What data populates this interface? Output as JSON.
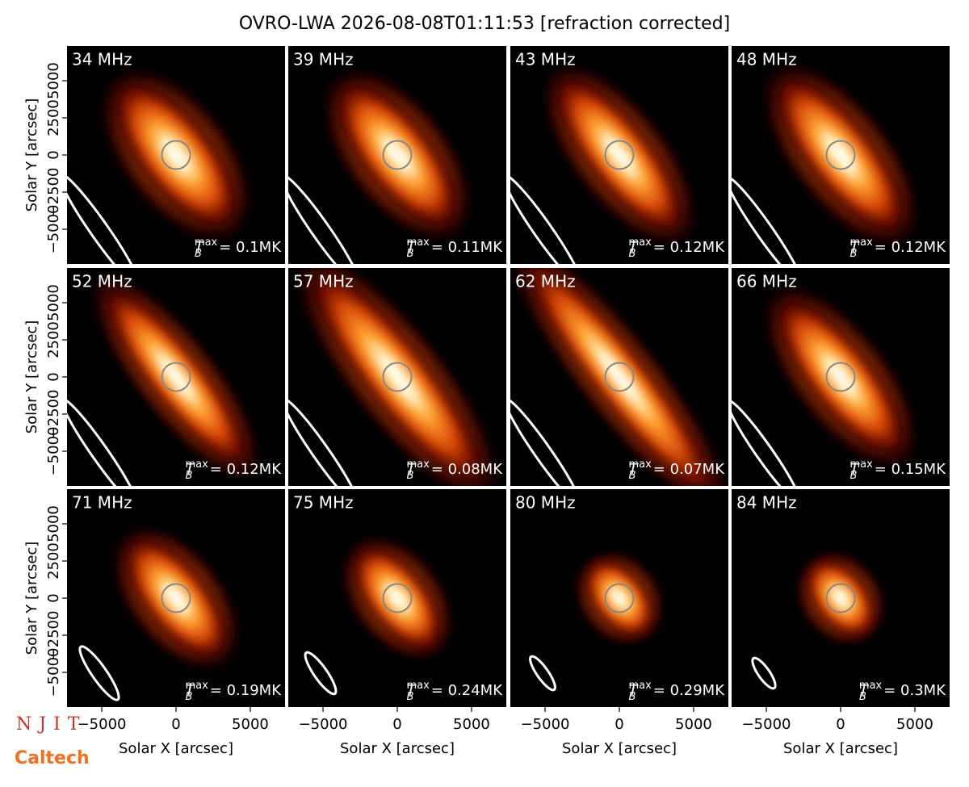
{
  "title": "OVRO-LWA 2026-08-08T01:11:53 [refraction corrected]",
  "logos": [
    "NJIT",
    "Caltech"
  ],
  "chart_data": [
    {
      "type": "image",
      "title": "34 MHz",
      "annotation": {
        "symbol": "T",
        "subscript": "B",
        "superscript": "max",
        "text": "= 0.1MK"
      },
      "xlim": [
        -7340,
        7340
      ],
      "ylim": [
        -7340,
        7340
      ],
      "ylabel": "Solar Y [arcsec]",
      "yticks": [
        {
          "value": -5000,
          "label": "−5000"
        },
        {
          "value": -2500,
          "label": "−2500"
        },
        0,
        2500,
        5000
      ]
    },
    {
      "type": "image",
      "title": "39 MHz",
      "annotation": {
        "symbol": "T",
        "subscript": "B",
        "superscript": "max",
        "text": "= 0.11MK"
      },
      "xlim": [
        -7340,
        7340
      ],
      "ylim": [
        -7340,
        7340
      ]
    },
    {
      "type": "image",
      "title": "43 MHz",
      "annotation": {
        "symbol": "T",
        "subscript": "B",
        "superscript": "max",
        "text": "= 0.12MK"
      },
      "xlim": [
        -7340,
        7340
      ],
      "ylim": [
        -7340,
        7340
      ]
    },
    {
      "type": "image",
      "title": "48 MHz",
      "annotation": {
        "symbol": "T",
        "subscript": "B",
        "superscript": "max",
        "text": "= 0.12MK"
      },
      "xlim": [
        -7340,
        7340
      ],
      "ylim": [
        -7340,
        7340
      ]
    },
    {
      "type": "image",
      "title": "52 MHz",
      "annotation": {
        "symbol": "T",
        "subscript": "B",
        "superscript": "max",
        "text": "= 0.12MK"
      },
      "xlim": [
        -7340,
        7340
      ],
      "ylim": [
        -7340,
        7340
      ],
      "ylabel": "Solar Y [arcsec]",
      "yticks": [
        {
          "value": -5000,
          "label": "−5000"
        },
        {
          "value": -2500,
          "label": "−2500"
        },
        0,
        2500,
        5000
      ]
    },
    {
      "type": "image",
      "title": "57 MHz",
      "annotation": {
        "symbol": "T",
        "subscript": "B",
        "superscript": "max",
        "text": "= 0.08MK"
      },
      "xlim": [
        -7340,
        7340
      ],
      "ylim": [
        -7340,
        7340
      ]
    },
    {
      "type": "image",
      "title": "62 MHz",
      "annotation": {
        "symbol": "T",
        "subscript": "B",
        "superscript": "max",
        "text": "= 0.07MK"
      },
      "xlim": [
        -7340,
        7340
      ],
      "ylim": [
        -7340,
        7340
      ]
    },
    {
      "type": "image",
      "title": "66 MHz",
      "annotation": {
        "symbol": "T",
        "subscript": "B",
        "superscript": "max",
        "text": "= 0.15MK"
      },
      "xlim": [
        -7340,
        7340
      ],
      "ylim": [
        -7340,
        7340
      ]
    },
    {
      "type": "image",
      "title": "71 MHz",
      "annotation": {
        "symbol": "T",
        "subscript": "B",
        "superscript": "max",
        "text": "= 0.19MK"
      },
      "xlim": [
        -7340,
        7340
      ],
      "ylim": [
        -7340,
        7340
      ],
      "xlabel": "Solar X [arcsec]",
      "xticks": [
        {
          "value": -5000,
          "label": "−5000"
        },
        0,
        5000
      ],
      "ylabel": "Solar Y [arcsec]",
      "yticks": [
        {
          "value": -5000,
          "label": "−5000"
        },
        {
          "value": -2500,
          "label": "−2500"
        },
        0,
        2500,
        5000
      ]
    },
    {
      "type": "image",
      "title": "75 MHz",
      "annotation": {
        "symbol": "T",
        "subscript": "B",
        "superscript": "max",
        "text": "= 0.24MK"
      },
      "xlim": [
        -7340,
        7340
      ],
      "ylim": [
        -7340,
        7340
      ],
      "xlabel": "Solar X [arcsec]",
      "xticks": [
        {
          "value": -5000,
          "label": "−5000"
        },
        0,
        5000
      ]
    },
    {
      "type": "image",
      "title": "80 MHz",
      "annotation": {
        "symbol": "T",
        "subscript": "B",
        "superscript": "max",
        "text": "= 0.29MK"
      },
      "xlim": [
        -7340,
        7340
      ],
      "ylim": [
        -7340,
        7340
      ],
      "xlabel": "Solar X [arcsec]",
      "xticks": [
        {
          "value": -5000,
          "label": "−5000"
        },
        0,
        5000
      ]
    },
    {
      "type": "image",
      "title": "84 MHz",
      "annotation": {
        "symbol": "T",
        "subscript": "B",
        "superscript": "max",
        "text": "= 0.3MK"
      },
      "xlim": [
        -7340,
        7340
      ],
      "ylim": [
        -7340,
        7340
      ],
      "xlabel": "Solar X [arcsec]",
      "xticks": [
        {
          "value": -5000,
          "label": "−5000"
        },
        0,
        5000
      ]
    }
  ]
}
